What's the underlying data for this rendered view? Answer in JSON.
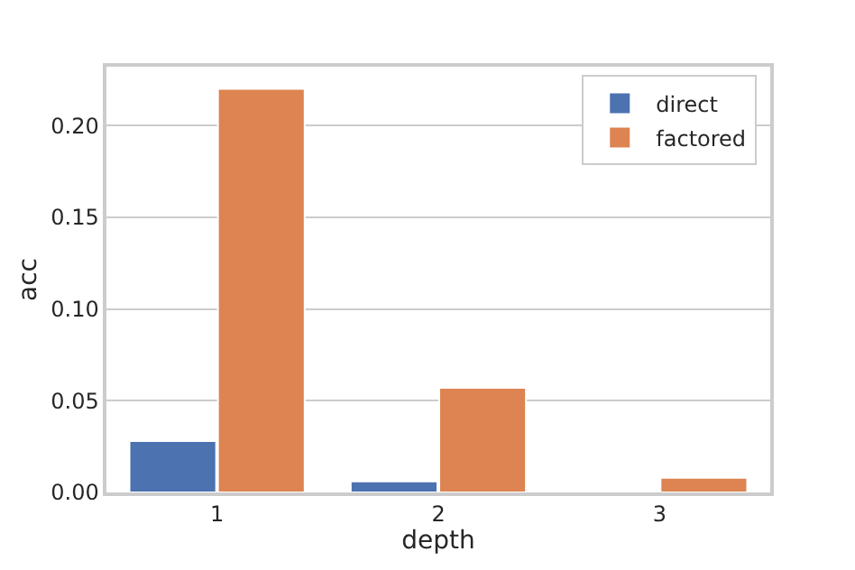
{
  "chart_data": {
    "type": "bar",
    "xlabel": "depth",
    "ylabel": "acc",
    "categories": [
      "1",
      "2",
      "3"
    ],
    "series": [
      {
        "name": "direct",
        "color": "#4c72b0",
        "values": [
          0.028,
          0.006,
          null
        ]
      },
      {
        "name": "factored",
        "color": "#dd8452",
        "values": [
          0.22,
          0.057,
          0.008
        ]
      }
    ],
    "ylim": [
      0,
      0.232
    ],
    "yticks": [
      {
        "value": 0,
        "label": "0.00"
      },
      {
        "value": 0.05,
        "label": "0.05"
      },
      {
        "value": 0.1,
        "label": "0.10"
      },
      {
        "value": 0.15,
        "label": "0.15"
      },
      {
        "value": 0.2,
        "label": "0.20"
      }
    ],
    "grid": "y",
    "legend": "top right"
  }
}
